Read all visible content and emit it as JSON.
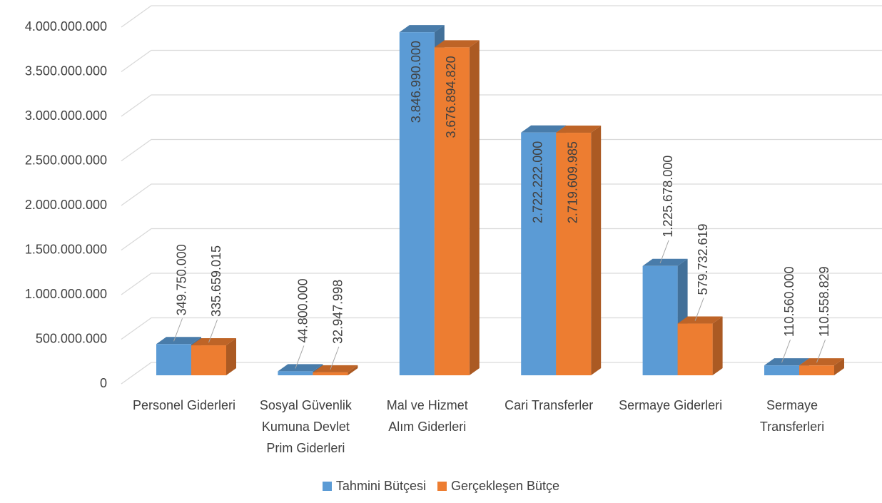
{
  "chart_data": {
    "type": "bar3d",
    "categories": [
      "Personel Giderleri",
      "Sosyal Güvenlik Kumuna Devlet Prim Giderleri",
      "Mal ve Hizmet Alım Giderleri",
      "Cari Transferler",
      "Sermaye Giderleri",
      "Sermaye Transferleri"
    ],
    "series": [
      {
        "name": "Tahmini Bütçesi",
        "color": "#5b9bd5",
        "values": [
          349750000,
          44800000,
          3846990000,
          2722222000,
          1225678000,
          110560000
        ],
        "value_labels": [
          "349.750.000",
          "44.800.000",
          "3.846.990.000",
          "2.722.222.000",
          "1.225.678.000",
          "110.560.000"
        ]
      },
      {
        "name": "Gerçekleşen Bütçe",
        "color": "#ed7d31",
        "values": [
          335659015,
          32947998,
          3676894820,
          2719609985,
          579732619,
          110558829
        ],
        "value_labels": [
          "335.659.015",
          "32.947.998",
          "3.676.894.820",
          "2.719.609.985",
          "579.732.619",
          "110.558.829"
        ]
      }
    ],
    "ylim": [
      0,
      4000000000
    ],
    "yticks": [
      0,
      {
        "value": 500000000,
        "label": "500.000.000"
      },
      {
        "value": 1000000000,
        "label": "1.000.000.000"
      },
      {
        "value": 1500000000,
        "label": "1.500.000.000"
      },
      {
        "value": 2000000000,
        "label": "2.000.000.000"
      },
      {
        "value": 2500000000,
        "label": "2.500.000.000"
      },
      {
        "value": 3000000000,
        "label": "3.000.000.000"
      },
      {
        "value": 3500000000,
        "label": "3.500.000.000"
      },
      {
        "value": 4000000000,
        "label": "4.000.000.000"
      }
    ],
    "grid": true,
    "legend": "bottom"
  }
}
